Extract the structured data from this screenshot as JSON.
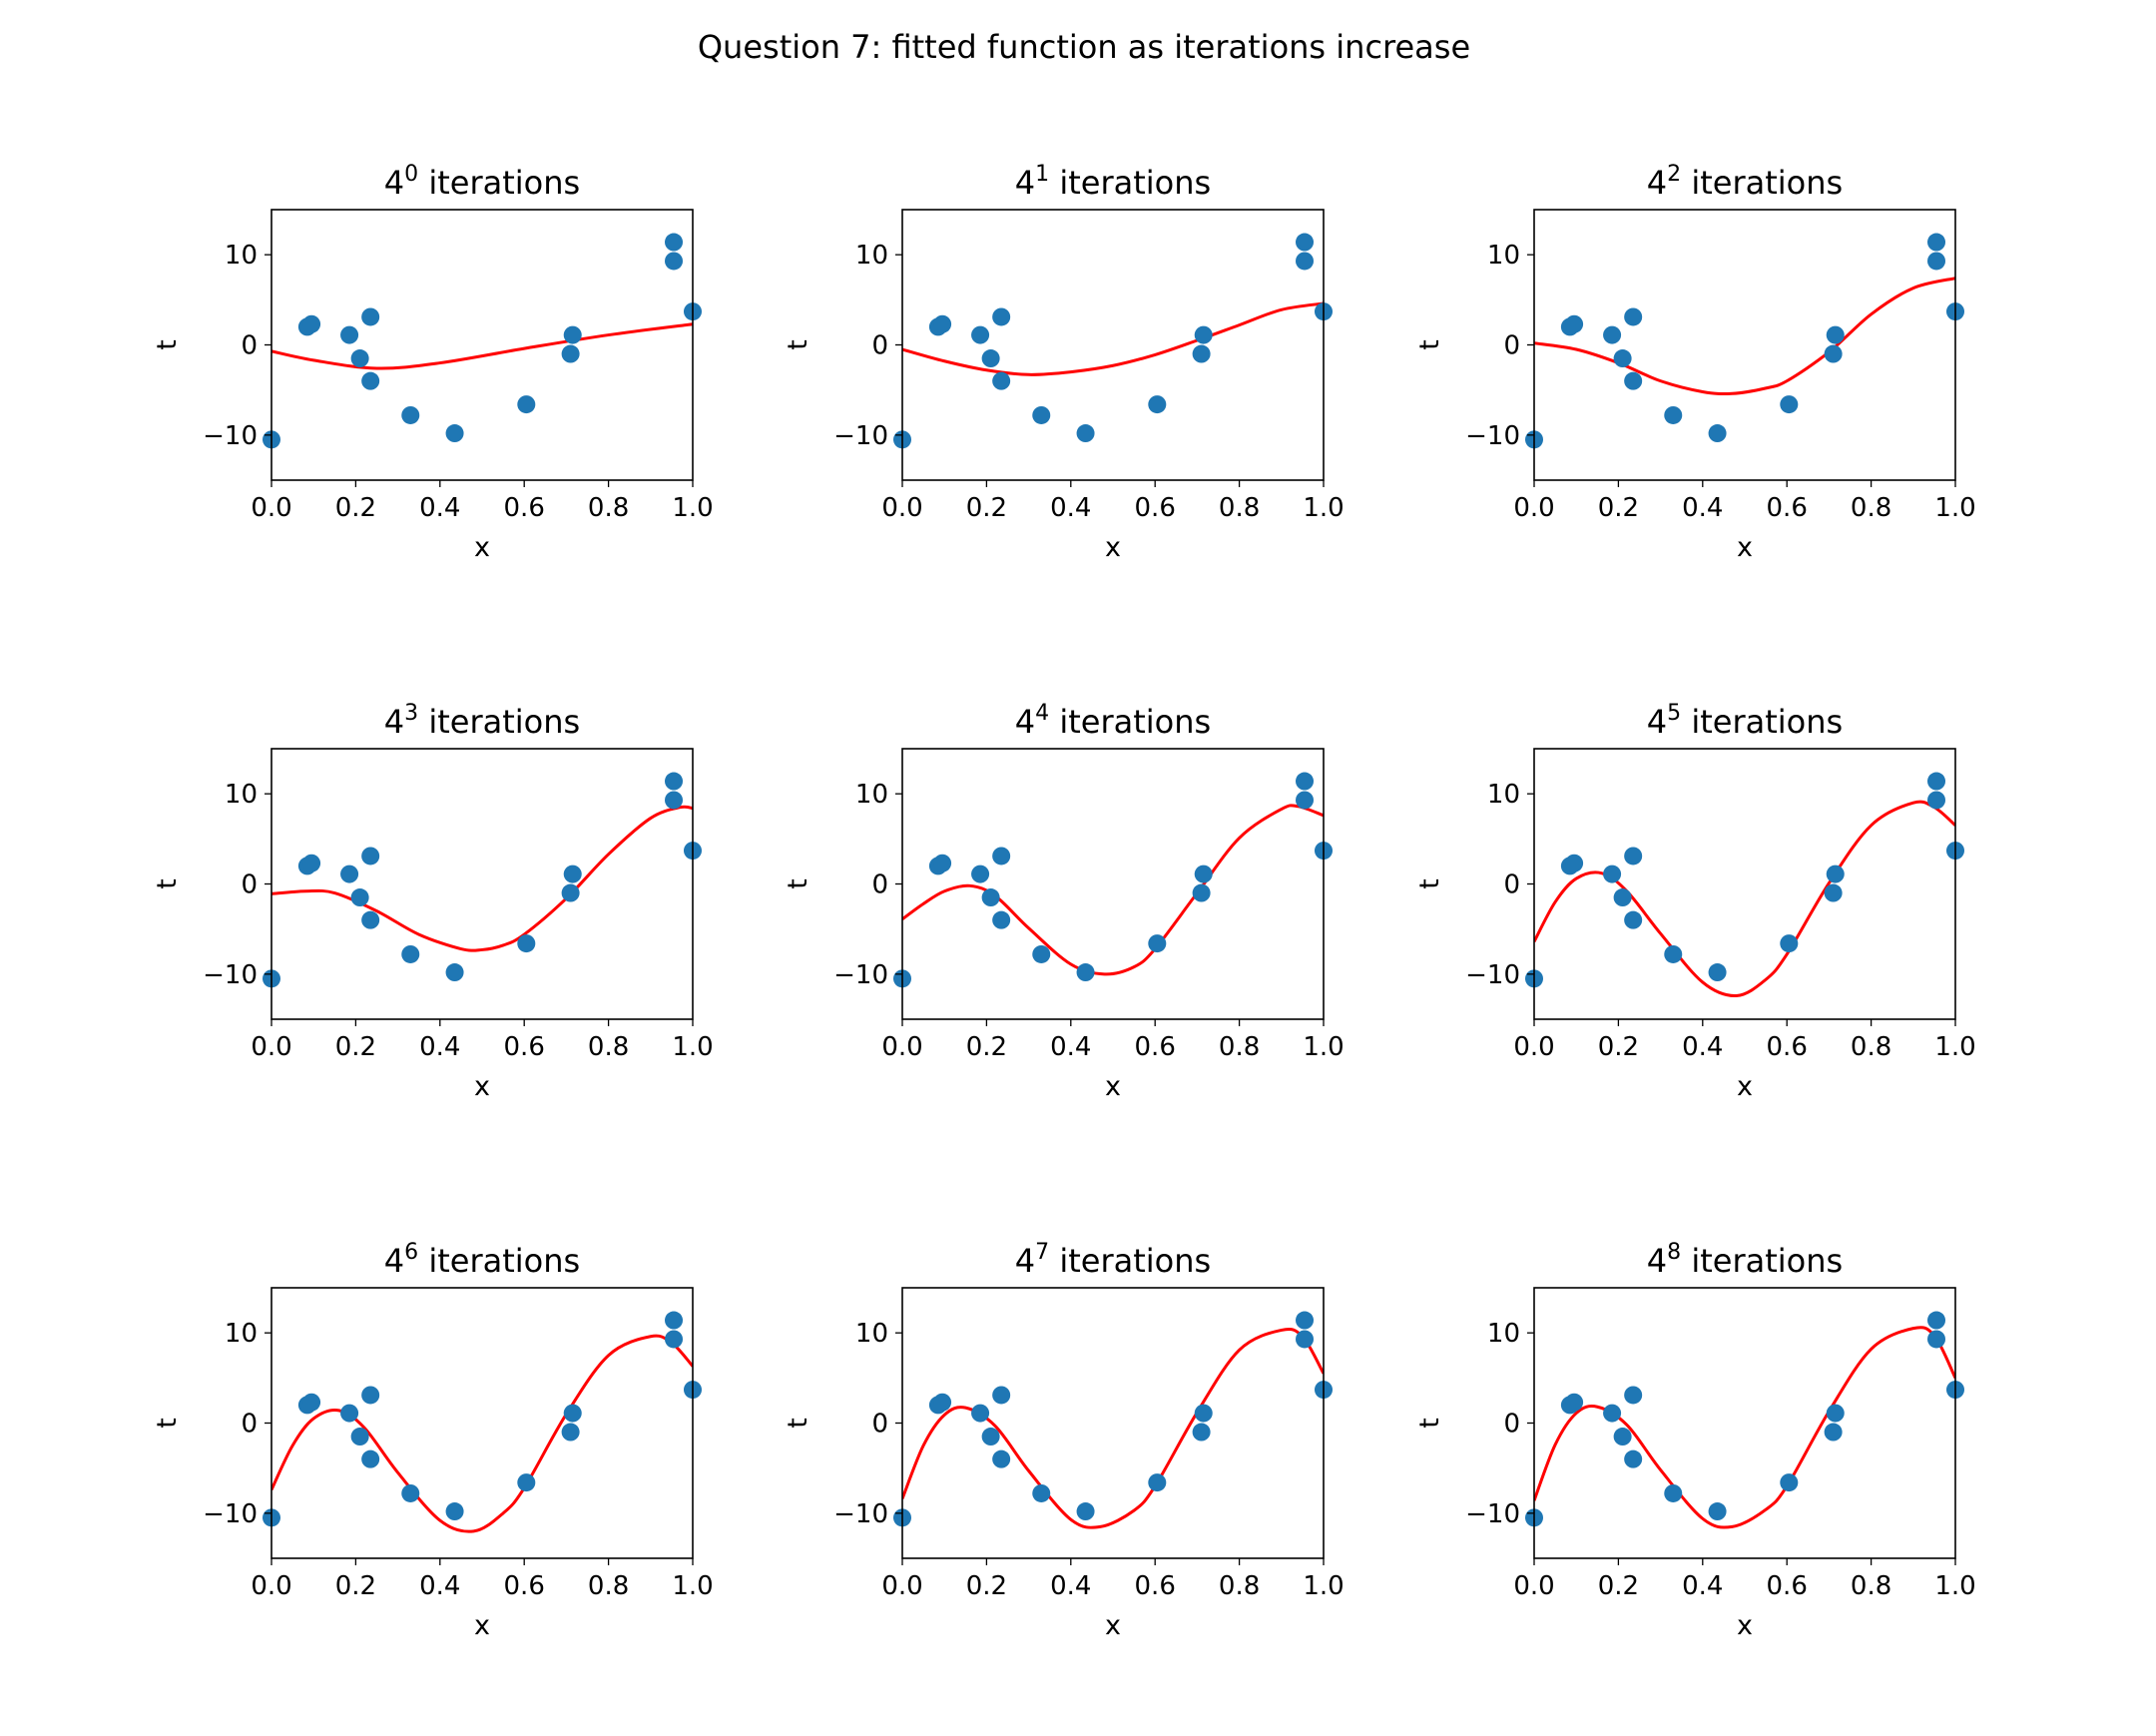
{
  "figure_title": "Question 7: fitted function as iterations increase",
  "colors": {
    "points": "#1f77b4",
    "fit_line": "#ff0000",
    "axes": "#000000",
    "background": "#ffffff"
  },
  "chart_data": [
    {
      "type": "scatter+line",
      "title_base": "4",
      "title_exp": "0",
      "title_rest": " iterations",
      "xlabel": "x",
      "ylabel": "t",
      "xlim": [
        0.0,
        1.0
      ],
      "ylim": [
        -15,
        15
      ],
      "xticks": [
        "0.0",
        "0.2",
        "0.4",
        "0.6",
        "0.8",
        "1.0"
      ],
      "yticks": [
        "10",
        "0",
        "−10"
      ],
      "ytick_values": [
        10,
        0,
        -10
      ],
      "points": {
        "x": [
          0.0,
          0.085,
          0.095,
          0.185,
          0.21,
          0.235,
          0.235,
          0.33,
          0.435,
          0.605,
          0.71,
          0.715,
          0.955,
          0.955,
          1.0
        ],
        "y": [
          -10.5,
          2.0,
          2.3,
          1.1,
          -1.5,
          3.1,
          -4.0,
          -7.8,
          -9.8,
          -6.6,
          -1.0,
          1.1,
          11.4,
          9.3,
          3.7
        ]
      },
      "fit": {
        "x": [
          0.0,
          0.1,
          0.25,
          0.4,
          0.6,
          0.8,
          1.0
        ],
        "y": [
          -0.7,
          -1.7,
          -2.6,
          -2.0,
          -0.4,
          1.1,
          2.3
        ]
      }
    },
    {
      "type": "scatter+line",
      "title_base": "4",
      "title_exp": "1",
      "title_rest": " iterations",
      "xlabel": "x",
      "ylabel": "t",
      "xlim": [
        0.0,
        1.0
      ],
      "ylim": [
        -15,
        15
      ],
      "xticks": [
        "0.0",
        "0.2",
        "0.4",
        "0.6",
        "0.8",
        "1.0"
      ],
      "yticks": [
        "10",
        "0",
        "−10"
      ],
      "ytick_values": [
        10,
        0,
        -10
      ],
      "points": {
        "x": [
          0.0,
          0.085,
          0.095,
          0.185,
          0.21,
          0.235,
          0.235,
          0.33,
          0.435,
          0.605,
          0.71,
          0.715,
          0.955,
          0.955,
          1.0
        ],
        "y": [
          -10.5,
          2.0,
          2.3,
          1.1,
          -1.5,
          3.1,
          -4.0,
          -7.8,
          -9.8,
          -6.6,
          -1.0,
          1.1,
          11.4,
          9.3,
          3.7
        ]
      },
      "fit": {
        "x": [
          0.0,
          0.1,
          0.2,
          0.3,
          0.4,
          0.5,
          0.6,
          0.7,
          0.8,
          0.9,
          1.0
        ],
        "y": [
          -0.5,
          -1.8,
          -2.8,
          -3.3,
          -3.0,
          -2.3,
          -1.1,
          0.5,
          2.2,
          3.9,
          4.6
        ]
      }
    },
    {
      "type": "scatter+line",
      "title_base": "4",
      "title_exp": "2",
      "title_rest": " iterations",
      "xlabel": "x",
      "ylabel": "t",
      "xlim": [
        0.0,
        1.0
      ],
      "ylim": [
        -15,
        15
      ],
      "xticks": [
        "0.0",
        "0.2",
        "0.4",
        "0.6",
        "0.8",
        "1.0"
      ],
      "yticks": [
        "10",
        "0",
        "−10"
      ],
      "ytick_values": [
        10,
        0,
        -10
      ],
      "points": {
        "x": [
          0.0,
          0.085,
          0.095,
          0.185,
          0.21,
          0.235,
          0.235,
          0.33,
          0.435,
          0.605,
          0.71,
          0.715,
          0.955,
          0.955,
          1.0
        ],
        "y": [
          -10.5,
          2.0,
          2.3,
          1.1,
          -1.5,
          3.1,
          -4.0,
          -7.8,
          -9.8,
          -6.6,
          -1.0,
          1.1,
          11.4,
          9.3,
          3.7
        ]
      },
      "fit": {
        "x": [
          0.0,
          0.1,
          0.2,
          0.3,
          0.4,
          0.47,
          0.55,
          0.6,
          0.7,
          0.8,
          0.9,
          1.0
        ],
        "y": [
          0.2,
          -0.5,
          -2.0,
          -4.0,
          -5.2,
          -5.4,
          -4.8,
          -4.0,
          -0.8,
          3.4,
          6.3,
          7.4
        ]
      }
    },
    {
      "type": "scatter+line",
      "title_base": "4",
      "title_exp": "3",
      "title_rest": " iterations",
      "xlabel": "x",
      "ylabel": "t",
      "xlim": [
        0.0,
        1.0
      ],
      "ylim": [
        -15,
        15
      ],
      "xticks": [
        "0.0",
        "0.2",
        "0.4",
        "0.6",
        "0.8",
        "1.0"
      ],
      "yticks": [
        "10",
        "0",
        "−10"
      ],
      "ytick_values": [
        10,
        0,
        -10
      ],
      "points": {
        "x": [
          0.0,
          0.085,
          0.095,
          0.185,
          0.21,
          0.235,
          0.235,
          0.33,
          0.435,
          0.605,
          0.71,
          0.715,
          0.955,
          0.955,
          1.0
        ],
        "y": [
          -10.5,
          2.0,
          2.3,
          1.1,
          -1.5,
          3.1,
          -4.0,
          -7.8,
          -9.8,
          -6.6,
          -1.0,
          1.1,
          11.4,
          9.3,
          3.7
        ]
      },
      "fit": {
        "x": [
          0.0,
          0.08,
          0.15,
          0.25,
          0.35,
          0.45,
          0.5,
          0.55,
          0.6,
          0.7,
          0.8,
          0.9,
          0.97,
          1.0
        ],
        "y": [
          -1.1,
          -0.8,
          -1.0,
          -3.0,
          -5.6,
          -7.2,
          -7.3,
          -6.8,
          -5.6,
          -1.6,
          3.3,
          7.3,
          8.5,
          8.4
        ]
      }
    },
    {
      "type": "scatter+line",
      "title_base": "4",
      "title_exp": "4",
      "title_rest": " iterations",
      "xlabel": "x",
      "ylabel": "t",
      "xlim": [
        0.0,
        1.0
      ],
      "ylim": [
        -15,
        15
      ],
      "xticks": [
        "0.0",
        "0.2",
        "0.4",
        "0.6",
        "0.8",
        "1.0"
      ],
      "yticks": [
        "10",
        "0",
        "−10"
      ],
      "ytick_values": [
        10,
        0,
        -10
      ],
      "points": {
        "x": [
          0.0,
          0.085,
          0.095,
          0.185,
          0.21,
          0.235,
          0.235,
          0.33,
          0.435,
          0.605,
          0.71,
          0.715,
          0.955,
          0.955,
          1.0
        ],
        "y": [
          -10.5,
          2.0,
          2.3,
          1.1,
          -1.5,
          3.1,
          -4.0,
          -7.8,
          -9.8,
          -6.6,
          -1.0,
          1.1,
          11.4,
          9.3,
          3.7
        ]
      },
      "fit": {
        "x": [
          0.0,
          0.05,
          0.1,
          0.16,
          0.22,
          0.3,
          0.4,
          0.48,
          0.55,
          0.6,
          0.7,
          0.8,
          0.9,
          0.94,
          1.0
        ],
        "y": [
          -3.9,
          -2.2,
          -0.8,
          -0.2,
          -1.3,
          -4.9,
          -8.9,
          -10.0,
          -9.2,
          -7.2,
          -1.0,
          5.1,
          8.3,
          8.6,
          7.6
        ]
      }
    },
    {
      "type": "scatter+line",
      "title_base": "4",
      "title_exp": "5",
      "title_rest": " iterations",
      "xlabel": "x",
      "ylabel": "t",
      "xlim": [
        0.0,
        1.0
      ],
      "ylim": [
        -15,
        15
      ],
      "xticks": [
        "0.0",
        "0.2",
        "0.4",
        "0.6",
        "0.8",
        "1.0"
      ],
      "yticks": [
        "10",
        "0",
        "−10"
      ],
      "ytick_values": [
        10,
        0,
        -10
      ],
      "points": {
        "x": [
          0.0,
          0.085,
          0.095,
          0.185,
          0.21,
          0.235,
          0.235,
          0.33,
          0.435,
          0.605,
          0.71,
          0.715,
          0.955,
          0.955,
          1.0
        ],
        "y": [
          -10.5,
          2.0,
          2.3,
          1.1,
          -1.5,
          3.1,
          -4.0,
          -7.8,
          -9.8,
          -6.6,
          -1.0,
          1.1,
          11.4,
          9.3,
          3.7
        ]
      },
      "fit": {
        "x": [
          0.0,
          0.05,
          0.1,
          0.16,
          0.22,
          0.3,
          0.4,
          0.48,
          0.55,
          0.6,
          0.7,
          0.8,
          0.9,
          0.95,
          1.0
        ],
        "y": [
          -6.4,
          -2.0,
          0.6,
          1.2,
          -0.8,
          -5.5,
          -10.9,
          -12.4,
          -10.6,
          -7.8,
          0.1,
          6.5,
          9.0,
          8.5,
          6.5
        ]
      }
    },
    {
      "type": "scatter+line",
      "title_base": "4",
      "title_exp": "6",
      "title_rest": " iterations",
      "xlabel": "x",
      "ylabel": "t",
      "xlim": [
        0.0,
        1.0
      ],
      "ylim": [
        -15,
        15
      ],
      "xticks": [
        "0.0",
        "0.2",
        "0.4",
        "0.6",
        "0.8",
        "1.0"
      ],
      "yticks": [
        "10",
        "0",
        "−10"
      ],
      "ytick_values": [
        10,
        0,
        -10
      ],
      "points": {
        "x": [
          0.0,
          0.085,
          0.095,
          0.185,
          0.21,
          0.235,
          0.235,
          0.33,
          0.435,
          0.605,
          0.71,
          0.715,
          0.955,
          0.955,
          1.0
        ],
        "y": [
          -10.5,
          2.0,
          2.3,
          1.1,
          -1.5,
          3.1,
          -4.0,
          -7.8,
          -9.8,
          -6.6,
          -1.0,
          1.1,
          11.4,
          9.3,
          3.7
        ]
      },
      "fit": {
        "x": [
          0.0,
          0.05,
          0.1,
          0.16,
          0.22,
          0.3,
          0.4,
          0.48,
          0.55,
          0.6,
          0.7,
          0.8,
          0.9,
          0.95,
          1.0
        ],
        "y": [
          -7.4,
          -2.5,
          0.5,
          1.4,
          -0.5,
          -5.5,
          -10.8,
          -12.0,
          -10.0,
          -7.2,
          1.0,
          7.5,
          9.6,
          8.9,
          6.3
        ]
      }
    },
    {
      "type": "scatter+line",
      "title_base": "4",
      "title_exp": "7",
      "title_rest": " iterations",
      "xlabel": "x",
      "ylabel": "t",
      "xlim": [
        0.0,
        1.0
      ],
      "ylim": [
        -15,
        15
      ],
      "xticks": [
        "0.0",
        "0.2",
        "0.4",
        "0.6",
        "0.8",
        "1.0"
      ],
      "yticks": [
        "10",
        "0",
        "−10"
      ],
      "ytick_values": [
        10,
        0,
        -10
      ],
      "points": {
        "x": [
          0.0,
          0.085,
          0.095,
          0.185,
          0.21,
          0.235,
          0.235,
          0.33,
          0.435,
          0.605,
          0.71,
          0.715,
          0.955,
          0.955,
          1.0
        ],
        "y": [
          -10.5,
          2.0,
          2.3,
          1.1,
          -1.5,
          3.1,
          -4.0,
          -7.8,
          -9.8,
          -6.6,
          -1.0,
          1.1,
          11.4,
          9.3,
          3.7
        ]
      },
      "fit": {
        "x": [
          0.0,
          0.05,
          0.1,
          0.15,
          0.22,
          0.3,
          0.4,
          0.47,
          0.55,
          0.6,
          0.7,
          0.8,
          0.9,
          0.95,
          1.0
        ],
        "y": [
          -8.4,
          -2.5,
          0.9,
          1.7,
          -0.3,
          -5.3,
          -10.7,
          -11.5,
          -9.7,
          -7.0,
          1.2,
          8.1,
          10.3,
          9.6,
          5.5
        ]
      }
    },
    {
      "type": "scatter+line",
      "title_base": "4",
      "title_exp": "8",
      "title_rest": " iterations",
      "xlabel": "x",
      "ylabel": "t",
      "xlim": [
        0.0,
        1.0
      ],
      "ylim": [
        -15,
        15
      ],
      "xticks": [
        "0.0",
        "0.2",
        "0.4",
        "0.6",
        "0.8",
        "1.0"
      ],
      "yticks": [
        "10",
        "0",
        "−10"
      ],
      "ytick_values": [
        10,
        0,
        -10
      ],
      "points": {
        "x": [
          0.0,
          0.085,
          0.095,
          0.185,
          0.21,
          0.235,
          0.235,
          0.33,
          0.435,
          0.605,
          0.71,
          0.715,
          0.955,
          0.955,
          1.0
        ],
        "y": [
          -10.5,
          2.0,
          2.3,
          1.1,
          -1.5,
          3.1,
          -4.0,
          -7.8,
          -9.8,
          -6.6,
          -1.0,
          1.1,
          11.4,
          9.3,
          3.7
        ]
      },
      "fit": {
        "x": [
          0.0,
          0.05,
          0.1,
          0.15,
          0.22,
          0.3,
          0.4,
          0.47,
          0.55,
          0.6,
          0.7,
          0.8,
          0.9,
          0.95,
          1.0
        ],
        "y": [
          -8.6,
          -2.4,
          1.1,
          1.8,
          -0.2,
          -5.2,
          -10.6,
          -11.5,
          -9.6,
          -7.0,
          1.3,
          8.2,
          10.5,
          9.7,
          5.0
        ]
      }
    }
  ]
}
